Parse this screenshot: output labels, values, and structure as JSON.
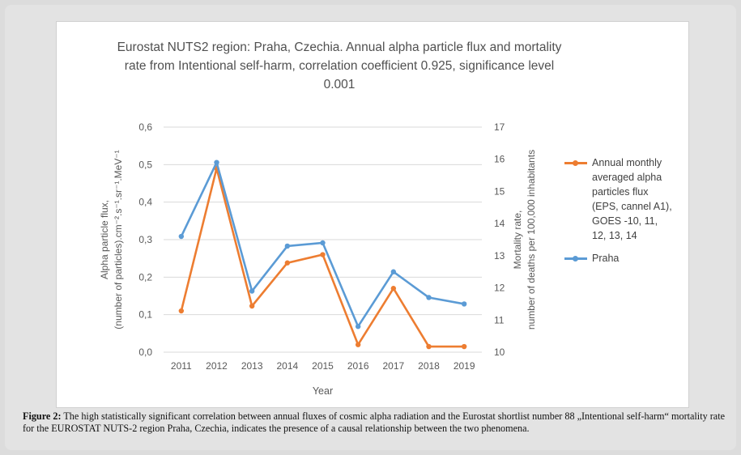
{
  "chart_data": {
    "type": "line",
    "title": "Eurostat NUTS2 region: Praha, Czechia. Annual alpha particle flux and mortality rate from Intentional self-harm, correlation coefficient 0.925, significance level 0.001",
    "title_lines": [
      "Eurostat NUTS2 region: Praha, Czechia. Annual alpha particle flux and mortality",
      "rate from Intentional self-harm, correlation coefficient 0.925, significance level",
      "0.001"
    ],
    "x": [
      "2011",
      "2012",
      "2013",
      "2014",
      "2015",
      "2016",
      "2017",
      "2018",
      "2019"
    ],
    "xlabel": "Year",
    "ylabel_left": [
      "Alpha particle flux,",
      "(number of particles).cm⁻².s⁻¹.sr⁻¹.MeV⁻¹"
    ],
    "ylabel_right": [
      "Mortality rate,",
      "number of deaths per 100,000 inhabitants"
    ],
    "ylim_left": [
      0,
      0.6
    ],
    "ylim_right": [
      10,
      17
    ],
    "yticks_left": [
      "0,0",
      "0,1",
      "0,2",
      "0,3",
      "0,4",
      "0,5",
      "0,6"
    ],
    "yticks_right": [
      "10",
      "11",
      "12",
      "13",
      "14",
      "15",
      "16",
      "17"
    ],
    "grid": true,
    "legend_position": "right",
    "series": [
      {
        "name": "Annual monthly averaged alpha particles flux (EPS, cannel A1), GOES -10, 11, 12, 13, 14",
        "name_lines": [
          "Annual monthly",
          "averaged alpha",
          "particles flux",
          "(EPS, cannel A1),",
          "GOES -10, 11,",
          "12, 13, 14"
        ],
        "axis": "left",
        "color": "#ed7d31",
        "values": [
          0.11,
          0.49,
          0.123,
          0.238,
          0.26,
          0.02,
          0.17,
          0.015,
          0.015
        ]
      },
      {
        "name": "Praha",
        "name_lines": [
          "Praha"
        ],
        "axis": "right",
        "color": "#5b9bd5",
        "values": [
          13.6,
          15.9,
          11.9,
          13.3,
          13.4,
          10.8,
          12.5,
          11.7,
          11.5
        ]
      }
    ]
  },
  "caption": {
    "label": "Figure 2:",
    "text": " The high statistically significant correlation between annual fluxes of cosmic alpha radiation and the Eurostat shortlist number 88 „Intentional self-harm“ mortality rate for the EUROSTAT NUTS-2 region Praha, Czechia, indicates the presence of a causal relationship between the two phenomena."
  },
  "colors": {
    "grid": "#d9d9d9",
    "text": "#595959"
  }
}
